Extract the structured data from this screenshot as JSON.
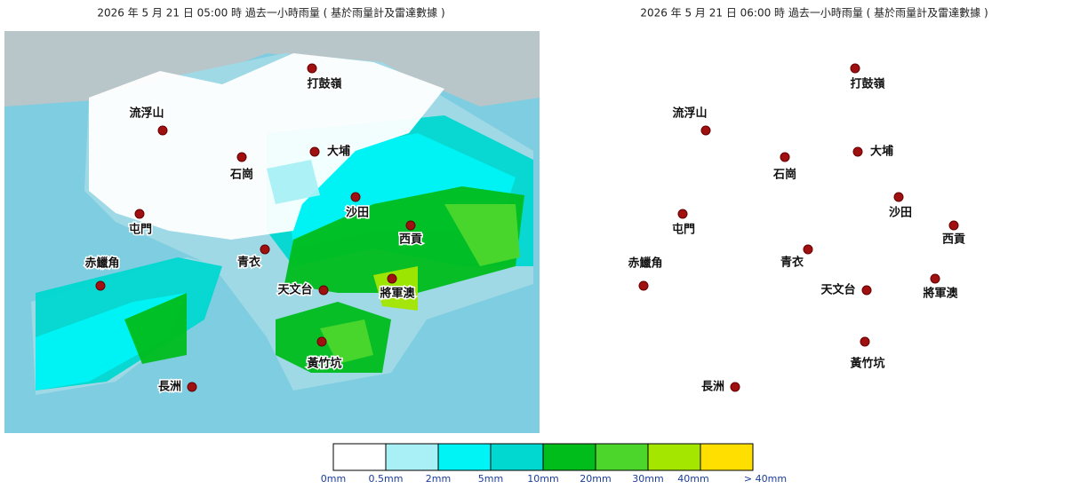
{
  "panels": [
    {
      "title": "2026 年  5  月 21 日 05:00  時  過去一小時雨量 ( 基於雨量計及雷達數據 )",
      "stations": [
        "打鼓嶺",
        "流浮山",
        "石崗",
        "大埔",
        "沙田",
        "屯門",
        "西貢",
        "青衣",
        "赤鱲角",
        "將軍澳",
        "天文台",
        "黃竹坑",
        "長洲"
      ]
    },
    {
      "title": "2026 年  5  月 21 日 06:00  時  過去一小時雨量 ( 基於雨量計及雷達數據 )",
      "stations": [
        "打鼓嶺",
        "流浮山",
        "石崗",
        "大埔",
        "沙田",
        "屯門",
        "西貢",
        "青衣",
        "赤鱲角",
        "將軍澳",
        "天文台",
        "黃竹坑",
        "長洲"
      ]
    }
  ],
  "legend": {
    "colors": [
      "#ffffff",
      "#a8f0f5",
      "#00f4f6",
      "#00d8d0",
      "#00bd1c",
      "#4cd62c",
      "#a4e600",
      "#ffdf00"
    ],
    "labels": [
      "0mm",
      "0.5mm",
      "2mm",
      "5mm",
      "10mm",
      "20mm",
      "30mm",
      "40mm",
      "> 40mm"
    ]
  }
}
